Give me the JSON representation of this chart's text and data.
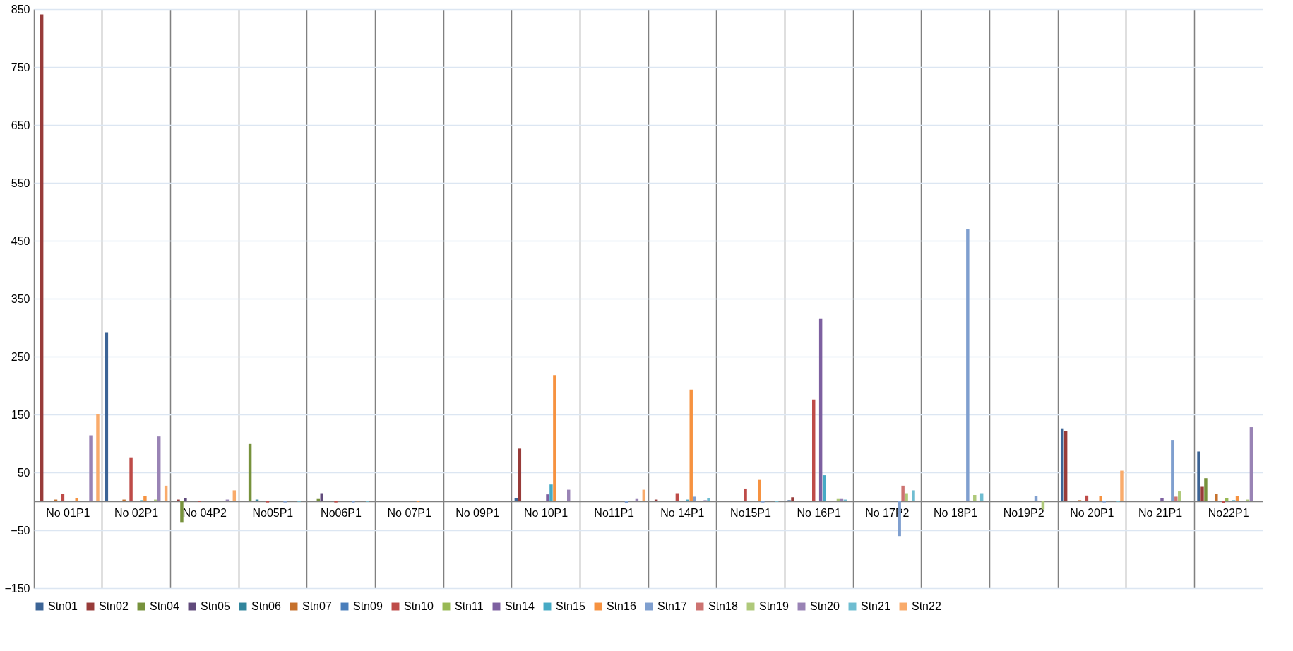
{
  "chart_data": {
    "type": "bar",
    "categories": [
      "No 01P1",
      "No 02P1",
      "No 04P2",
      "No05P1",
      "No06P1",
      "No 07P1",
      "No 09P1",
      "No 10P1",
      "No11P1",
      "No 14P1",
      "No15P1",
      "No 16P1",
      "No 17P2",
      "No 18P1",
      "No19P2",
      "No 20P1",
      "No 21P1",
      "No22P1"
    ],
    "series": [
      {
        "name": "Stn01",
        "color": "#3c6496",
        "values": [
          null,
          292,
          null,
          null,
          null,
          null,
          null,
          5,
          null,
          null,
          null,
          2,
          null,
          null,
          null,
          126,
          null,
          86
        ]
      },
      {
        "name": "Stn02",
        "color": "#983b39",
        "values": [
          841,
          null,
          3,
          null,
          null,
          null,
          1,
          91,
          null,
          3,
          null,
          7,
          null,
          null,
          null,
          121,
          null,
          25
        ]
      },
      {
        "name": "Stn04",
        "color": "#77923c",
        "values": [
          null,
          null,
          -37,
          99,
          4,
          null,
          null,
          null,
          null,
          null,
          null,
          null,
          null,
          null,
          null,
          null,
          null,
          40
        ]
      },
      {
        "name": "Stn05",
        "color": "#604a7b",
        "values": [
          null,
          null,
          6,
          null,
          14,
          null,
          null,
          null,
          null,
          null,
          null,
          null,
          null,
          null,
          null,
          null,
          null,
          null
        ]
      },
      {
        "name": "Stn06",
        "color": "#31859c",
        "values": [
          null,
          null,
          null,
          3,
          null,
          null,
          null,
          null,
          null,
          null,
          null,
          null,
          null,
          null,
          null,
          null,
          null,
          null
        ]
      },
      {
        "name": "Stn07",
        "color": "#c6712c",
        "values": [
          3,
          3,
          null,
          null,
          null,
          null,
          null,
          1,
          null,
          null,
          null,
          1,
          null,
          null,
          null,
          2,
          null,
          13
        ]
      },
      {
        "name": "Stn09",
        "color": "#4a7ebb",
        "values": [
          null,
          null,
          null,
          null,
          null,
          null,
          null,
          null,
          null,
          null,
          null,
          null,
          null,
          null,
          null,
          null,
          null,
          null
        ]
      },
      {
        "name": "Stn10",
        "color": "#be4b48",
        "values": [
          13,
          76,
          -1,
          -2,
          -2,
          null,
          null,
          null,
          null,
          14,
          22,
          176,
          null,
          null,
          null,
          10,
          null,
          -3
        ]
      },
      {
        "name": "Stn11",
        "color": "#98b954",
        "values": [
          null,
          null,
          null,
          null,
          null,
          null,
          null,
          null,
          null,
          null,
          null,
          null,
          null,
          null,
          null,
          null,
          null,
          5
        ]
      },
      {
        "name": "Stn14",
        "color": "#7d60a0",
        "values": [
          null,
          null,
          null,
          null,
          null,
          null,
          null,
          12,
          null,
          null,
          null,
          315,
          null,
          null,
          null,
          null,
          5,
          null
        ]
      },
      {
        "name": "Stn15",
        "color": "#46aac5",
        "values": [
          null,
          2,
          null,
          null,
          null,
          null,
          null,
          29,
          null,
          3,
          null,
          45,
          null,
          null,
          null,
          null,
          null,
          2
        ]
      },
      {
        "name": "Stn16",
        "color": "#f69240",
        "values": [
          5,
          9,
          1,
          1,
          1,
          -1,
          null,
          218,
          1,
          193,
          37,
          null,
          null,
          null,
          null,
          9,
          null,
          9
        ]
      },
      {
        "name": "Stn17",
        "color": "#7f9fcf",
        "values": [
          null,
          null,
          null,
          -2,
          -2,
          null,
          null,
          null,
          -3,
          8,
          -2,
          null,
          -60,
          470,
          9,
          -2,
          106,
          null
        ]
      },
      {
        "name": "Stn18",
        "color": "#cd7371",
        "values": [
          null,
          null,
          null,
          null,
          null,
          null,
          null,
          null,
          null,
          1,
          null,
          null,
          27,
          null,
          null,
          null,
          8,
          null
        ]
      },
      {
        "name": "Stn19",
        "color": "#afc97a",
        "values": [
          null,
          3,
          null,
          null,
          null,
          null,
          null,
          1,
          null,
          null,
          null,
          4,
          14,
          11,
          -14,
          null,
          17,
          3
        ]
      },
      {
        "name": "Stn20",
        "color": "#9983b5",
        "values": [
          114,
          112,
          3,
          null,
          null,
          null,
          null,
          20,
          4,
          2,
          null,
          4,
          null,
          null,
          null,
          null,
          null,
          128
        ]
      },
      {
        "name": "Stn21",
        "color": "#6fbdd1",
        "values": [
          null,
          null,
          null,
          -1,
          -1,
          null,
          null,
          null,
          null,
          6,
          -1,
          3,
          19,
          14,
          null,
          -1,
          null,
          null
        ]
      },
      {
        "name": "Stn22",
        "color": "#f9ab6b",
        "values": [
          151,
          27,
          19,
          null,
          null,
          null,
          null,
          null,
          20,
          null,
          null,
          null,
          null,
          null,
          null,
          53,
          null,
          null
        ]
      }
    ],
    "ylim": [
      -150,
      850
    ],
    "yticks": [
      -150,
      -50,
      50,
      150,
      250,
      350,
      450,
      550,
      650,
      750,
      850
    ],
    "grid": true,
    "legend": "bottom"
  }
}
